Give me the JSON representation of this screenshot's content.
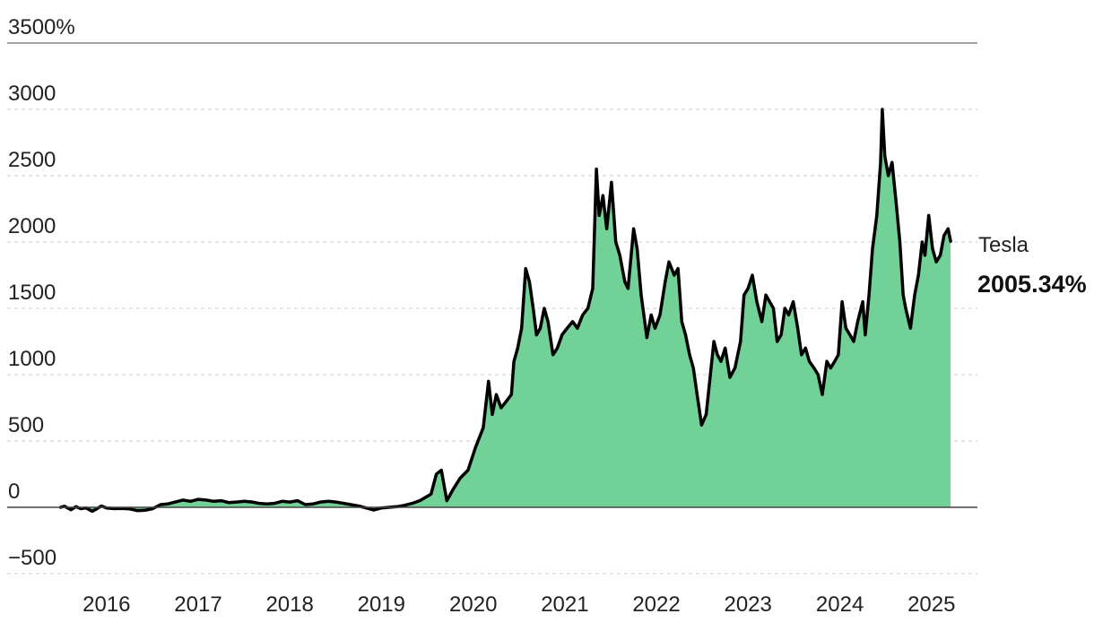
{
  "chart_data": {
    "type": "area",
    "title": "",
    "xlabel": "",
    "ylabel": "",
    "ylim": [
      -500,
      3500
    ],
    "xlim": [
      "2015-06-01",
      "2025-12-31"
    ],
    "y_ticks": [
      {
        "value": 3500,
        "label": "3500%"
      },
      {
        "value": 3000,
        "label": "3000"
      },
      {
        "value": 2500,
        "label": "2500"
      },
      {
        "value": 2000,
        "label": "2000"
      },
      {
        "value": 1500,
        "label": "1500"
      },
      {
        "value": 1000,
        "label": "1000"
      },
      {
        "value": 500,
        "label": "500"
      },
      {
        "value": 0,
        "label": "0"
      },
      {
        "value": -500,
        "label": "−500"
      }
    ],
    "x_ticks": [
      {
        "value": "2016-07-01",
        "label": "2016"
      },
      {
        "value": "2017-07-01",
        "label": "2017"
      },
      {
        "value": "2018-07-01",
        "label": "2018"
      },
      {
        "value": "2019-07-01",
        "label": "2019"
      },
      {
        "value": "2020-07-01",
        "label": "2020"
      },
      {
        "value": "2021-07-01",
        "label": "2021"
      },
      {
        "value": "2022-07-01",
        "label": "2022"
      },
      {
        "value": "2023-07-01",
        "label": "2023"
      },
      {
        "value": "2024-07-01",
        "label": "2024"
      },
      {
        "value": "2025-07-01",
        "label": "2025"
      }
    ],
    "grid": "horizontal dashed",
    "colors": {
      "area": "#72d197",
      "line": "#000000",
      "grid": "#cccccc",
      "axis": "#444444"
    },
    "series": [
      {
        "name": "Tesla",
        "value_label": "2005.34%",
        "points": [
          [
            "2015-12-31",
            0
          ],
          [
            "2016-01-15",
            8
          ],
          [
            "2016-02-10",
            -18
          ],
          [
            "2016-03-01",
            5
          ],
          [
            "2016-03-20",
            -10
          ],
          [
            "2016-04-10",
            -5
          ],
          [
            "2016-05-05",
            -30
          ],
          [
            "2016-05-20",
            -15
          ],
          [
            "2016-06-10",
            10
          ],
          [
            "2016-07-01",
            -5
          ],
          [
            "2016-08-01",
            -10
          ],
          [
            "2016-09-01",
            -8
          ],
          [
            "2016-10-01",
            -12
          ],
          [
            "2016-11-01",
            -25
          ],
          [
            "2016-12-01",
            -22
          ],
          [
            "2017-01-01",
            -10
          ],
          [
            "2017-02-01",
            20
          ],
          [
            "2017-03-01",
            25
          ],
          [
            "2017-04-01",
            40
          ],
          [
            "2017-05-01",
            55
          ],
          [
            "2017-06-01",
            45
          ],
          [
            "2017-07-01",
            60
          ],
          [
            "2017-08-01",
            55
          ],
          [
            "2017-09-01",
            45
          ],
          [
            "2017-10-01",
            50
          ],
          [
            "2017-11-01",
            35
          ],
          [
            "2017-12-01",
            40
          ],
          [
            "2018-01-01",
            45
          ],
          [
            "2018-02-01",
            40
          ],
          [
            "2018-03-01",
            30
          ],
          [
            "2018-04-01",
            25
          ],
          [
            "2018-05-01",
            30
          ],
          [
            "2018-06-01",
            45
          ],
          [
            "2018-07-01",
            40
          ],
          [
            "2018-08-01",
            50
          ],
          [
            "2018-09-01",
            20
          ],
          [
            "2018-10-01",
            25
          ],
          [
            "2018-11-01",
            40
          ],
          [
            "2018-12-01",
            45
          ],
          [
            "2019-01-01",
            40
          ],
          [
            "2019-02-01",
            30
          ],
          [
            "2019-03-01",
            20
          ],
          [
            "2019-04-01",
            10
          ],
          [
            "2019-05-01",
            -5
          ],
          [
            "2019-06-01",
            -20
          ],
          [
            "2019-07-01",
            -5
          ],
          [
            "2019-08-01",
            0
          ],
          [
            "2019-09-01",
            5
          ],
          [
            "2019-10-01",
            15
          ],
          [
            "2019-11-01",
            30
          ],
          [
            "2019-12-01",
            50
          ],
          [
            "2020-01-15",
            100
          ],
          [
            "2020-02-05",
            250
          ],
          [
            "2020-02-25",
            280
          ],
          [
            "2020-03-18",
            50
          ],
          [
            "2020-04-10",
            130
          ],
          [
            "2020-05-10",
            220
          ],
          [
            "2020-06-10",
            280
          ],
          [
            "2020-07-10",
            450
          ],
          [
            "2020-08-10",
            600
          ],
          [
            "2020-08-31",
            950
          ],
          [
            "2020-09-15",
            700
          ],
          [
            "2020-10-01",
            850
          ],
          [
            "2020-10-20",
            750
          ],
          [
            "2020-11-10",
            800
          ],
          [
            "2020-11-30",
            850
          ],
          [
            "2020-12-10",
            1100
          ],
          [
            "2020-12-25",
            1200
          ],
          [
            "2021-01-10",
            1350
          ],
          [
            "2021-01-26",
            1800
          ],
          [
            "2021-02-10",
            1700
          ],
          [
            "2021-02-25",
            1500
          ],
          [
            "2021-03-10",
            1300
          ],
          [
            "2021-03-25",
            1350
          ],
          [
            "2021-04-10",
            1500
          ],
          [
            "2021-04-25",
            1400
          ],
          [
            "2021-05-15",
            1150
          ],
          [
            "2021-06-01",
            1200
          ],
          [
            "2021-06-20",
            1300
          ],
          [
            "2021-07-10",
            1350
          ],
          [
            "2021-08-01",
            1400
          ],
          [
            "2021-08-20",
            1350
          ],
          [
            "2021-09-10",
            1450
          ],
          [
            "2021-10-01",
            1500
          ],
          [
            "2021-10-20",
            1650
          ],
          [
            "2021-11-04",
            2550
          ],
          [
            "2021-11-15",
            2200
          ],
          [
            "2021-11-30",
            2350
          ],
          [
            "2021-12-15",
            2100
          ],
          [
            "2022-01-03",
            2450
          ],
          [
            "2022-01-20",
            2000
          ],
          [
            "2022-02-05",
            1900
          ],
          [
            "2022-02-25",
            1700
          ],
          [
            "2022-03-10",
            1650
          ],
          [
            "2022-04-01",
            2100
          ],
          [
            "2022-04-15",
            1950
          ],
          [
            "2022-05-01",
            1600
          ],
          [
            "2022-05-24",
            1280
          ],
          [
            "2022-06-10",
            1450
          ],
          [
            "2022-06-25",
            1350
          ],
          [
            "2022-07-15",
            1450
          ],
          [
            "2022-08-05",
            1700
          ],
          [
            "2022-08-20",
            1850
          ],
          [
            "2022-09-10",
            1750
          ],
          [
            "2022-09-25",
            1800
          ],
          [
            "2022-10-10",
            1400
          ],
          [
            "2022-10-25",
            1300
          ],
          [
            "2022-11-10",
            1150
          ],
          [
            "2022-11-25",
            1050
          ],
          [
            "2022-12-10",
            850
          ],
          [
            "2022-12-28",
            620
          ],
          [
            "2023-01-15",
            700
          ],
          [
            "2023-02-01",
            1000
          ],
          [
            "2023-02-15",
            1250
          ],
          [
            "2023-03-01",
            1150
          ],
          [
            "2023-03-15",
            1100
          ],
          [
            "2023-04-01",
            1200
          ],
          [
            "2023-04-20",
            980
          ],
          [
            "2023-05-10",
            1050
          ],
          [
            "2023-06-01",
            1250
          ],
          [
            "2023-06-15",
            1600
          ],
          [
            "2023-07-01",
            1650
          ],
          [
            "2023-07-18",
            1750
          ],
          [
            "2023-08-05",
            1550
          ],
          [
            "2023-08-25",
            1400
          ],
          [
            "2023-09-10",
            1600
          ],
          [
            "2023-09-25",
            1550
          ],
          [
            "2023-10-10",
            1500
          ],
          [
            "2023-10-25",
            1250
          ],
          [
            "2023-11-10",
            1300
          ],
          [
            "2023-11-25",
            1500
          ],
          [
            "2023-12-10",
            1450
          ],
          [
            "2023-12-28",
            1550
          ],
          [
            "2024-01-15",
            1350
          ],
          [
            "2024-01-30",
            1150
          ],
          [
            "2024-02-15",
            1200
          ],
          [
            "2024-03-01",
            1100
          ],
          [
            "2024-03-20",
            1050
          ],
          [
            "2024-04-05",
            1000
          ],
          [
            "2024-04-22",
            850
          ],
          [
            "2024-05-10",
            1100
          ],
          [
            "2024-05-25",
            1050
          ],
          [
            "2024-06-10",
            1100
          ],
          [
            "2024-06-25",
            1150
          ],
          [
            "2024-07-10",
            1550
          ],
          [
            "2024-07-25",
            1350
          ],
          [
            "2024-08-10",
            1300
          ],
          [
            "2024-08-25",
            1250
          ],
          [
            "2024-09-10",
            1400
          ],
          [
            "2024-09-30",
            1550
          ],
          [
            "2024-10-10",
            1300
          ],
          [
            "2024-10-25",
            1600
          ],
          [
            "2024-11-08",
            1950
          ],
          [
            "2024-11-25",
            2200
          ],
          [
            "2024-12-10",
            2600
          ],
          [
            "2024-12-17",
            3000
          ],
          [
            "2024-12-27",
            2650
          ],
          [
            "2025-01-10",
            2500
          ],
          [
            "2025-01-25",
            2600
          ],
          [
            "2025-02-10",
            2300
          ],
          [
            "2025-02-25",
            2000
          ],
          [
            "2025-03-10",
            1600
          ],
          [
            "2025-03-20",
            1500
          ],
          [
            "2025-04-08",
            1350
          ],
          [
            "2025-04-25",
            1600
          ],
          [
            "2025-05-10",
            1750
          ],
          [
            "2025-05-25",
            2000
          ],
          [
            "2025-06-05",
            1900
          ],
          [
            "2025-06-20",
            2200
          ],
          [
            "2025-07-05",
            1950
          ],
          [
            "2025-07-20",
            1850
          ],
          [
            "2025-08-05",
            1900
          ],
          [
            "2025-08-20",
            2050
          ],
          [
            "2025-09-05",
            2100
          ],
          [
            "2025-09-15",
            2005.34
          ]
        ]
      }
    ]
  }
}
